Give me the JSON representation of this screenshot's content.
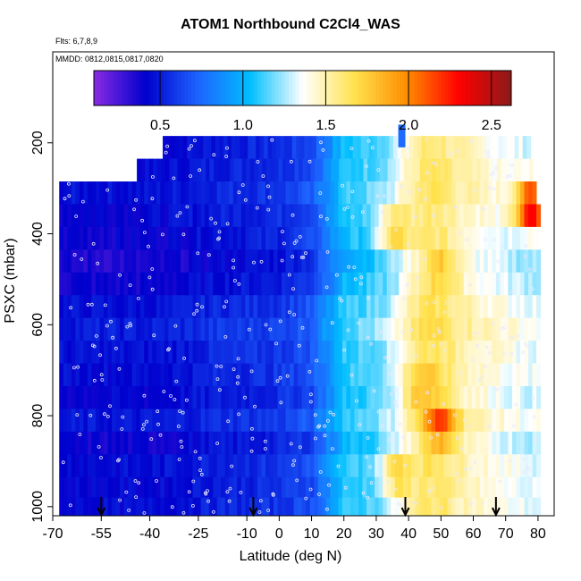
{
  "chart_data": {
    "type": "heatmap",
    "title": "ATOM1 Northbound C2Cl4_WAS",
    "annotations": [
      "Flts: 6,7,8,9",
      "MMDD: 0812,0815,0817,0820"
    ],
    "xlabel": "Latitude (deg N)",
    "ylabel": "PSXC (mbar)",
    "xlim": [
      -70,
      85
    ],
    "ylim": [
      1020,
      0
    ],
    "y_reversed": true,
    "x_ticks": [
      -70,
      -55,
      -40,
      -25,
      -10,
      0,
      10,
      20,
      30,
      40,
      50,
      60,
      70,
      80
    ],
    "y_ticks": [
      200,
      400,
      600,
      800,
      1000
    ],
    "colorbar": {
      "range": [
        0.1,
        2.62
      ],
      "ticks": [
        0.5,
        1.0,
        1.5,
        2.0,
        2.5
      ],
      "tick_labels": [
        "0.5",
        "1.0",
        "1.5",
        "2.0",
        "2.5"
      ],
      "colors": [
        "#8a2be2",
        "#0000cd",
        "#1e64ff",
        "#00bfff",
        "#ffffff",
        "#ffe24d",
        "#ff8c00",
        "#ff0000",
        "#8b1a1a"
      ]
    },
    "row_pressures": [
      210,
      260,
      310,
      360,
      410,
      460,
      510,
      560,
      610,
      660,
      710,
      760,
      810,
      860,
      910,
      960,
      1000
    ],
    "row_lat_ranges": [
      [
        -36,
        77
      ],
      [
        -44,
        78
      ],
      [
        -68,
        79
      ],
      [
        -68,
        80
      ],
      [
        -68,
        80
      ],
      [
        -68,
        80
      ],
      [
        -68,
        80
      ],
      [
        -68,
        80
      ],
      [
        -68,
        80
      ],
      [
        -68,
        80
      ],
      [
        -68,
        80
      ],
      [
        -68,
        80
      ],
      [
        -68,
        80
      ],
      [
        -68,
        80
      ],
      [
        -68,
        80
      ],
      [
        -68,
        80
      ],
      [
        -68,
        80
      ]
    ],
    "anchor_lats": [
      -60,
      -50,
      -40,
      -30,
      -20,
      -10,
      0,
      10,
      15,
      20,
      25,
      30,
      35,
      40,
      45,
      50,
      55,
      60,
      70,
      80
    ],
    "anchor_values": [
      0.42,
      0.42,
      0.42,
      0.45,
      0.5,
      0.52,
      0.55,
      0.65,
      0.85,
      1.05,
      1.1,
      1.15,
      1.25,
      1.45,
      1.6,
      1.6,
      1.5,
      1.45,
      1.35,
      1.3
    ],
    "hotspots": [
      {
        "lat": 50,
        "p": 820,
        "value": 2.2
      },
      {
        "lat": 44,
        "p": 740,
        "value": 1.85
      },
      {
        "lat": 36,
        "p": 390,
        "value": 1.8
      },
      {
        "lat": 50,
        "p": 480,
        "value": 1.8
      },
      {
        "lat": 78,
        "p": 340,
        "value": 2.5
      },
      {
        "lat": 37,
        "p": 930,
        "value": 1.8
      }
    ],
    "arrow_lats": [
      -55,
      -8,
      39,
      67
    ]
  }
}
